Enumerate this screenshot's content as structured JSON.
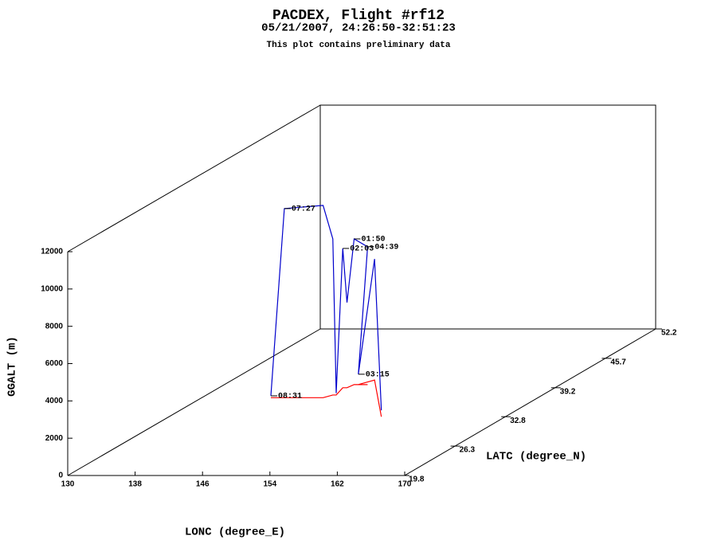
{
  "chart_data": {
    "type": "line3d",
    "title": "PACDEX, Flight #rf12",
    "subtitle": "05/21/2007, 24:26:50-32:51:23",
    "note": "This plot contains preliminary data",
    "xlabel": "LONC (degree_E)",
    "ylabel": "LATC (degree_N)",
    "zlabel": "GGALT (m)",
    "xlim": [
      130,
      170
    ],
    "xticks": [
      130,
      138,
      146,
      154,
      162,
      170
    ],
    "ylim": [
      19.8,
      52.2
    ],
    "yticks": [
      19.8,
      26.3,
      32.8,
      39.2,
      45.7,
      52.2
    ],
    "zlim": [
      0,
      12000
    ],
    "zticks": [
      0,
      2000,
      4000,
      6000,
      8000,
      10000,
      12000
    ],
    "series": [
      {
        "color": "#0000cc",
        "shadow_color": "#ff0000",
        "lon": [
          138.2,
          139.8,
          144.4,
          145.0,
          145.4,
          144.7,
          145.2,
          145.4,
          147.0,
          145.9,
          146.9,
          155.2
        ],
        "lat": [
          37.0,
          37.0,
          37.0,
          37.6,
          37.6,
          39.2,
          39.2,
          39.9,
          39.9,
          39.9,
          40.9,
          32.8
        ],
        "alt": [
          100,
          10140,
          10310,
          8370,
          100,
          7470,
          4570,
          7810,
          7390,
          555,
          6490,
          340
        ],
        "time_labels": [
          "08:31",
          "07:27",
          null,
          null,
          null,
          "02:03",
          null,
          "01:50",
          "04:39",
          "03:15",
          null,
          null
        ]
      }
    ]
  }
}
